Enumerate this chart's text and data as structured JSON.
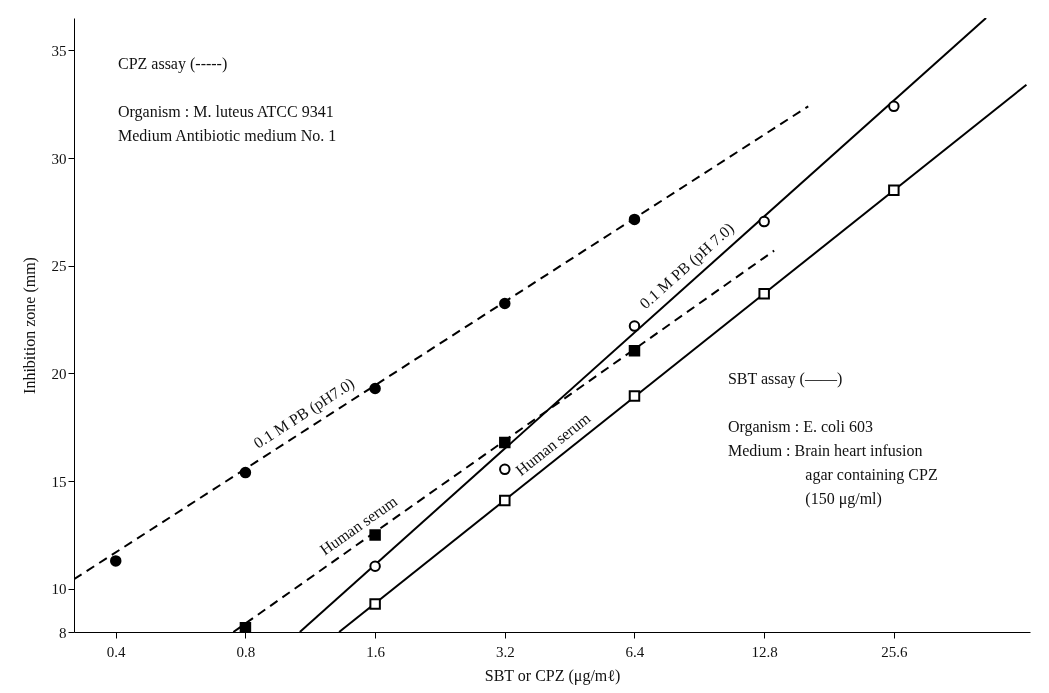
{
  "chart_data": {
    "type": "line",
    "xlabel": "SBT or CPZ (μg/mℓ)",
    "ylabel": "Inhibition zone (mm)",
    "log": "x",
    "xlim": [
      0.32,
      53
    ],
    "xticks": [
      0.4,
      0.8,
      1.6,
      3.2,
      6.4,
      12.8,
      25.6
    ],
    "ylim": [
      8,
      36.5
    ],
    "yticks": [
      8,
      10,
      15,
      20,
      25,
      30,
      35
    ],
    "series": [
      {
        "type": "line",
        "color": "#000000",
        "line_style": "dashed",
        "x": [
          0.32,
          16.2
        ],
        "values": [
          10.45,
          32.4
        ]
      },
      {
        "type": "line",
        "color": "#000000",
        "line_style": "dashed",
        "x": [
          0.75,
          13.5
        ],
        "values": [
          8,
          25.7
        ]
      },
      {
        "type": "line",
        "color": "#000000",
        "line_style": "solid",
        "x": [
          1.07,
          41.9
        ],
        "values": [
          8,
          36.5
        ]
      },
      {
        "type": "line",
        "color": "#000000",
        "line_style": "solid",
        "x": [
          1.32,
          52
        ],
        "values": [
          8,
          33.4
        ]
      },
      {
        "type": "scatter",
        "marker": "circle",
        "color": "#000000",
        "x": [
          0.4,
          0.8,
          1.6,
          3.2,
          6.4
        ],
        "values": [
          11.3,
          15.4,
          19.3,
          23.25,
          27.15
        ]
      },
      {
        "type": "scatter",
        "marker": "square",
        "color": "#000000",
        "x": [
          0.8,
          1.6,
          3.2,
          6.4
        ],
        "values": [
          8.2,
          12.5,
          16.8,
          21.05
        ]
      },
      {
        "type": "scatter",
        "marker": "circle",
        "color": "#ffffff",
        "x": [
          1.6,
          3.2,
          6.4,
          12.8,
          25.6
        ],
        "values": [
          11.05,
          15.55,
          22.2,
          27.05,
          32.4
        ]
      },
      {
        "type": "scatter",
        "marker": "square",
        "color": "#ffffff",
        "x": [
          1.6,
          3.2,
          6.4,
          12.8,
          25.6
        ],
        "values": [
          9.3,
          14.1,
          18.95,
          23.7,
          28.5
        ]
      }
    ],
    "annotations": [
      {
        "text": "0.1 M PB (pH7.0)",
        "x": 1.14,
        "y": 17.6
      },
      {
        "text": "Human serum",
        "x": 1.53,
        "y": 12.4
      },
      {
        "text": "0.1 M PB (pH 7.0)",
        "x": 8.9,
        "y": 24.5
      },
      {
        "text": "Human serum",
        "x": 4.34,
        "y": 16.2
      },
      "CPZ assay   (-----)\n\nOrganism : M. luteus ATCC 9341\nMedium     Antibiotic medium No. 1",
      "SBT assay   (——)\n\nOrganism : E. coli 603\nMedium    : Brain heart infusion\n                  agar containing CPZ\n                  (150 μg/ml)"
    ]
  }
}
